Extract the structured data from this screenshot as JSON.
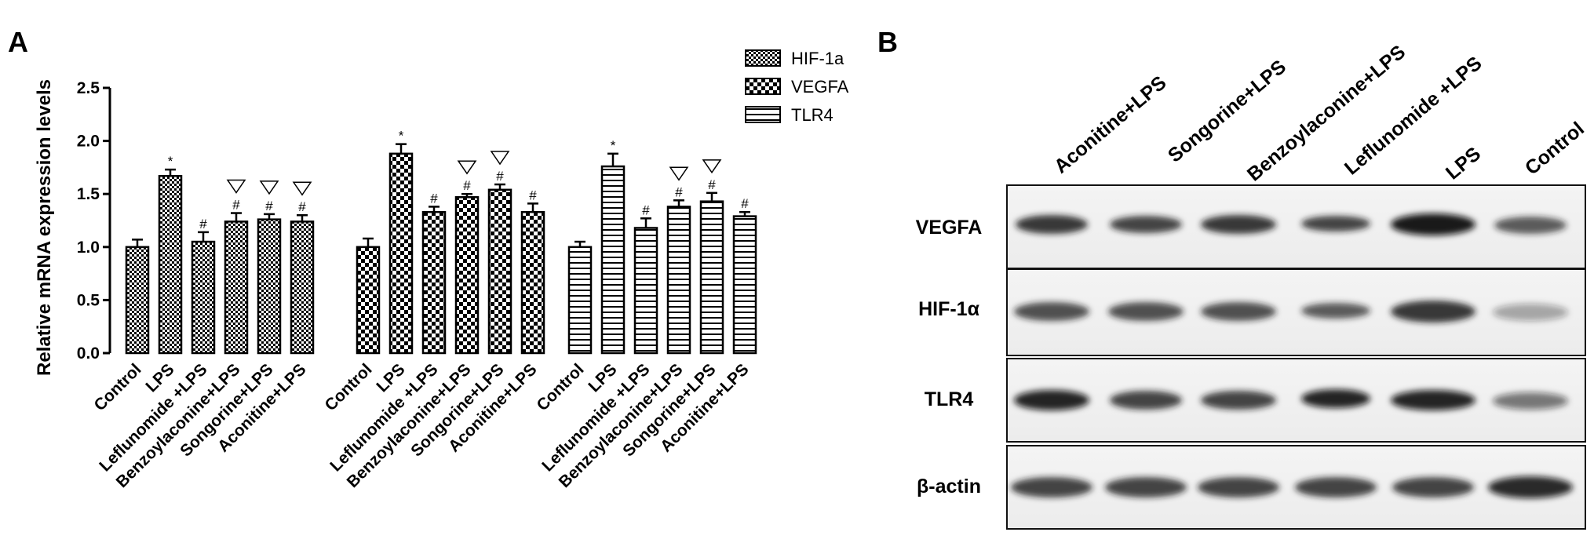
{
  "panel_a": {
    "letter": "A",
    "chart_data": {
      "type": "bar",
      "ylabel": "Relative mRNA expression levels",
      "xlabel": "",
      "ylim": [
        0,
        2.5
      ],
      "yticks": [
        "0.0",
        "0.5",
        "1.0",
        "1.5",
        "2.0",
        "2.5"
      ],
      "legend_position": "top-right",
      "groups": [
        {
          "series": "HIF-1a",
          "categories": [
            "Control",
            "LPS",
            "Leflunomide +LPS",
            "Benzoylaconine+LPS",
            "Songorine+LPS",
            "Aconitine+LPS"
          ],
          "values": [
            1.0,
            1.67,
            1.05,
            1.24,
            1.26,
            1.24
          ],
          "errors": [
            0.07,
            0.06,
            0.09,
            0.08,
            0.05,
            0.06
          ],
          "markers": [
            "",
            "*",
            "#",
            "#",
            "#",
            "#"
          ],
          "triangles": [
            false,
            false,
            false,
            true,
            true,
            true
          ]
        },
        {
          "series": "VEGFA",
          "categories": [
            "Control",
            "LPS",
            "Leflunomide +LPS",
            "Benzoylaconine+LPS",
            "Songorine+LPS",
            "Aconitine+LPS"
          ],
          "values": [
            1.0,
            1.88,
            1.33,
            1.47,
            1.54,
            1.33
          ],
          "errors": [
            0.08,
            0.09,
            0.05,
            0.03,
            0.05,
            0.08
          ],
          "markers": [
            "",
            "*",
            "#",
            "#",
            "#",
            "#"
          ],
          "triangles": [
            false,
            false,
            false,
            true,
            true,
            false
          ]
        },
        {
          "series": "TLR4",
          "categories": [
            "Control",
            "LPS",
            "Leflunomide +LPS",
            "Benzoylaconine+LPS",
            "Songorine+LPS",
            "Aconitine+LPS"
          ],
          "values": [
            1.0,
            1.76,
            1.18,
            1.38,
            1.43,
            1.29
          ],
          "errors": [
            0.05,
            0.12,
            0.09,
            0.06,
            0.08,
            0.04
          ],
          "markers": [
            "",
            "*",
            "#",
            "#",
            "#",
            "#"
          ],
          "triangles": [
            false,
            false,
            false,
            true,
            true,
            false
          ]
        }
      ],
      "legend": [
        "HIF-1a",
        "VEGFA",
        "TLR4"
      ]
    }
  },
  "panel_b": {
    "letter": "B",
    "lanes": [
      "Aconitine+LPS",
      "Songorine+LPS",
      "Benzoylaconine+LPS",
      "Leflunomide +LPS",
      "LPS",
      "Control"
    ],
    "rows": [
      "VEGFA",
      "HIF-1α",
      "TLR4",
      "β-actin"
    ],
    "band_intensity": [
      [
        0.85,
        0.8,
        0.85,
        0.8,
        0.95,
        0.7
      ],
      [
        0.75,
        0.75,
        0.75,
        0.7,
        0.85,
        0.35
      ],
      [
        0.9,
        0.8,
        0.8,
        0.9,
        0.9,
        0.55
      ],
      [
        0.8,
        0.8,
        0.8,
        0.8,
        0.8,
        0.85
      ]
    ]
  }
}
